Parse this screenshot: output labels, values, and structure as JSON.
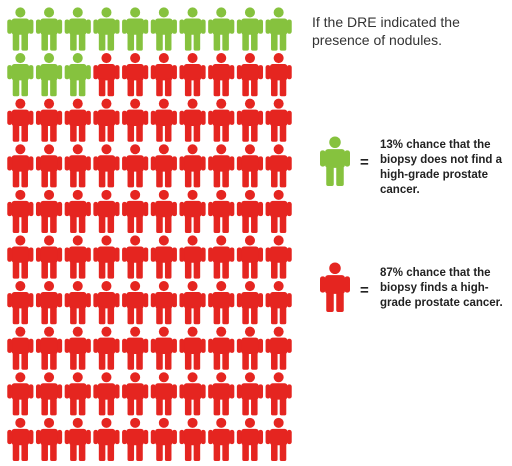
{
  "title": "If the DRE indicated the presence of nodules.",
  "grid": {
    "total": 100,
    "columns": 10,
    "green_count": 13,
    "red_count": 87
  },
  "colors": {
    "green": "#86c23e",
    "red": "#e52520"
  },
  "legend": [
    {
      "color": "green",
      "icon": "person-green-icon",
      "text": "13% chance that the biopsy does not find a high-grade prostate cancer."
    },
    {
      "color": "red",
      "icon": "person-red-icon",
      "text": "87% chance that the biopsy finds a high-grade prostate cancer."
    }
  ],
  "equals": "="
}
